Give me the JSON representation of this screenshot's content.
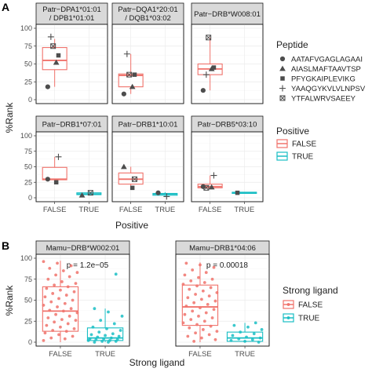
{
  "figure": {
    "panel_a_tag": "A",
    "panel_b_tag": "B"
  },
  "legends": {
    "peptide": {
      "title": "Peptide",
      "items": [
        {
          "label": "AATAFVGAGLAGAAI",
          "shape": "circle"
        },
        {
          "label": "AIASLMAFTAAVTSP",
          "shape": "triangle"
        },
        {
          "label": "PFYGKAIPLEVIKG",
          "shape": "square"
        },
        {
          "label": "YAAQGYKVLVLNPSV",
          "shape": "plus"
        },
        {
          "label": "YTFALWRVSAEEY",
          "shape": "boxx"
        }
      ]
    },
    "positive": {
      "title": "Positive",
      "items": [
        {
          "label": "FALSE",
          "color": "#F0726B"
        },
        {
          "label": "TRUE",
          "color": "#19BEC4"
        }
      ]
    },
    "strong": {
      "title": "Strong ligand",
      "items": [
        {
          "label": "FALSE",
          "color": "#F0726B"
        },
        {
          "label": "TRUE",
          "color": "#19BEC4"
        }
      ]
    }
  },
  "chart_data": [
    {
      "type": "box",
      "panel": "A",
      "ylabel": "%Rank",
      "xlabel": "Positive",
      "categories": [
        "FALSE",
        "TRUE"
      ],
      "ylim": [
        0,
        100
      ],
      "yticks": [
        0,
        25,
        50,
        75,
        100
      ],
      "facets": [
        {
          "title_lines": [
            "Patr−DPA1*01:01",
            "/ DPB1*01:01"
          ],
          "groups": [
            {
              "category": "FALSE",
              "color": "#F0726B",
              "q1": 42,
              "median": 55,
              "q3": 73,
              "whisker_low": 18,
              "whisker_high": 85,
              "points": [
                {
                  "shape": "circle",
                  "y": 18
                },
                {
                  "shape": "triangle",
                  "y": 52
                },
                {
                  "shape": "square",
                  "y": 62
                },
                {
                  "shape": "plus",
                  "y": 88
                },
                {
                  "shape": "boxx",
                  "y": 75
                }
              ]
            }
          ]
        },
        {
          "title_lines": [
            "Patr−DQA1*20:01",
            "/ DQB1*03:02"
          ],
          "groups": [
            {
              "category": "FALSE",
              "color": "#F0726B",
              "q1": 18,
              "median": 34,
              "q3": 36,
              "whisker_low": 8,
              "whisker_high": 64,
              "points": [
                {
                  "shape": "circle",
                  "y": 8
                },
                {
                  "shape": "triangle",
                  "y": 18
                },
                {
                  "shape": "square",
                  "y": 35
                },
                {
                  "shape": "plus",
                  "y": 64
                },
                {
                  "shape": "boxx",
                  "y": 35
                }
              ]
            }
          ]
        },
        {
          "title_lines": [
            "Patr−DRB*W008:01"
          ],
          "groups": [
            {
              "category": "FALSE",
              "color": "#F0726B",
              "q1": 35,
              "median": 43,
              "q3": 50,
              "whisker_low": 13,
              "whisker_high": 87,
              "points": [
                {
                  "shape": "circle",
                  "y": 13
                },
                {
                  "shape": "triangle",
                  "y": 43
                },
                {
                  "shape": "square",
                  "y": 45
                },
                {
                  "shape": "plus",
                  "y": 35
                },
                {
                  "shape": "boxx",
                  "y": 87
                }
              ]
            }
          ]
        },
        {
          "title_lines": [
            "Patr−DRB1*07:01"
          ],
          "groups": [
            {
              "category": "FALSE",
              "color": "#F0726B",
              "q1": 29,
              "median": 30,
              "q3": 49,
              "whisker_low": 25,
              "whisker_high": 66,
              "points": [
                {
                  "shape": "circle",
                  "y": 30
                },
                {
                  "shape": "square",
                  "y": 25
                },
                {
                  "shape": "plus",
                  "y": 66
                }
              ]
            },
            {
              "category": "TRUE",
              "color": "#19BEC4",
              "q1": 5,
              "median": 6,
              "q3": 8,
              "whisker_low": 4,
              "whisker_high": 9,
              "points": [
                {
                  "shape": "triangle",
                  "y": 4
                },
                {
                  "shape": "boxx",
                  "y": 8
                }
              ]
            }
          ]
        },
        {
          "title_lines": [
            "Patr−DRB1*10:01"
          ],
          "groups": [
            {
              "category": "FALSE",
              "color": "#F0726B",
              "q1": 22,
              "median": 30,
              "q3": 40,
              "whisker_low": 16,
              "whisker_high": 50,
              "points": [
                {
                  "shape": "triangle",
                  "y": 50
                },
                {
                  "shape": "square",
                  "y": 16
                },
                {
                  "shape": "boxx",
                  "y": 30
                }
              ]
            },
            {
              "category": "TRUE",
              "color": "#19BEC4",
              "q1": 4,
              "median": 6,
              "q3": 7,
              "whisker_low": 2,
              "whisker_high": 9,
              "points": [
                {
                  "shape": "circle",
                  "y": 8
                },
                {
                  "shape": "plus",
                  "y": 2
                }
              ]
            }
          ]
        },
        {
          "title_lines": [
            "Patr−DRB5*03:10"
          ],
          "groups": [
            {
              "category": "FALSE",
              "color": "#F0726B",
              "q1": 16,
              "median": 18,
              "q3": 22,
              "whisker_low": 14,
              "whisker_high": 36,
              "points": [
                {
                  "shape": "circle",
                  "y": 18
                },
                {
                  "shape": "triangle",
                  "y": 17
                },
                {
                  "shape": "plus",
                  "y": 36
                },
                {
                  "shape": "boxx",
                  "y": 16
                }
              ]
            },
            {
              "category": "TRUE",
              "color": "#19BEC4",
              "q1": 7,
              "median": 8,
              "q3": 9,
              "whisker_low": 7,
              "whisker_high": 9,
              "points": [
                {
                  "shape": "square",
                  "y": 8
                }
              ]
            }
          ]
        }
      ]
    },
    {
      "type": "box",
      "panel": "B",
      "ylabel": "%Rank",
      "xlabel": "Strong ligand",
      "categories": [
        "FALSE",
        "TRUE"
      ],
      "ylim": [
        0,
        100
      ],
      "yticks": [
        0,
        25,
        50,
        75,
        100
      ],
      "facets": [
        {
          "title_lines": [
            "Mamu−DRB*W002:01"
          ],
          "annotation": "p = 1.2e−05",
          "groups": [
            {
              "category": "FALSE",
              "color": "#F0726B",
              "q1": 13,
              "median": 37,
              "q3": 66,
              "whisker_low": 0,
              "whisker_high": 97,
              "points": [
                2,
                4,
                5,
                7,
                9,
                11,
                13,
                14,
                16,
                18,
                20,
                22,
                24,
                26,
                27,
                29,
                31,
                33,
                35,
                37,
                38,
                40,
                42,
                44,
                46,
                48,
                50,
                52,
                54,
                56,
                58,
                60,
                62,
                64,
                66,
                68,
                70,
                72,
                75,
                78,
                80,
                83,
                85,
                88,
                91,
                94,
                96
              ]
            },
            {
              "category": "TRUE",
              "color": "#19BEC4",
              "q1": 2,
              "median": 5,
              "q3": 17,
              "whisker_low": 0,
              "whisker_high": 40,
              "points": [
                0,
                0,
                1,
                1,
                2,
                2,
                3,
                3,
                4,
                4,
                5,
                6,
                7,
                8,
                9,
                10,
                12,
                14,
                16,
                18,
                22,
                26,
                31,
                36,
                40,
                81
              ]
            }
          ]
        },
        {
          "title_lines": [
            "Mamu−DRB1*04:06"
          ],
          "annotation": "p = 0.00018",
          "groups": [
            {
              "category": "FALSE",
              "color": "#F0726B",
              "q1": 20,
              "median": 42,
              "q3": 68,
              "whisker_low": 0,
              "whisker_high": 95,
              "points": [
                1,
                3,
                5,
                7,
                9,
                11,
                13,
                15,
                17,
                19,
                21,
                23,
                25,
                27,
                29,
                31,
                33,
                35,
                37,
                39,
                41,
                43,
                45,
                47,
                49,
                51,
                53,
                55,
                57,
                59,
                61,
                63,
                65,
                67,
                69,
                71,
                73,
                75,
                77,
                80,
                83,
                86,
                89,
                92,
                94
              ]
            },
            {
              "category": "TRUE",
              "color": "#19BEC4",
              "q1": 1,
              "median": 5,
              "q3": 12,
              "whisker_low": 0,
              "whisker_high": 23,
              "points": [
                0,
                1,
                2,
                3,
                4,
                5,
                6,
                8,
                10,
                12,
                15,
                18,
                20,
                23
              ]
            }
          ]
        }
      ]
    }
  ]
}
